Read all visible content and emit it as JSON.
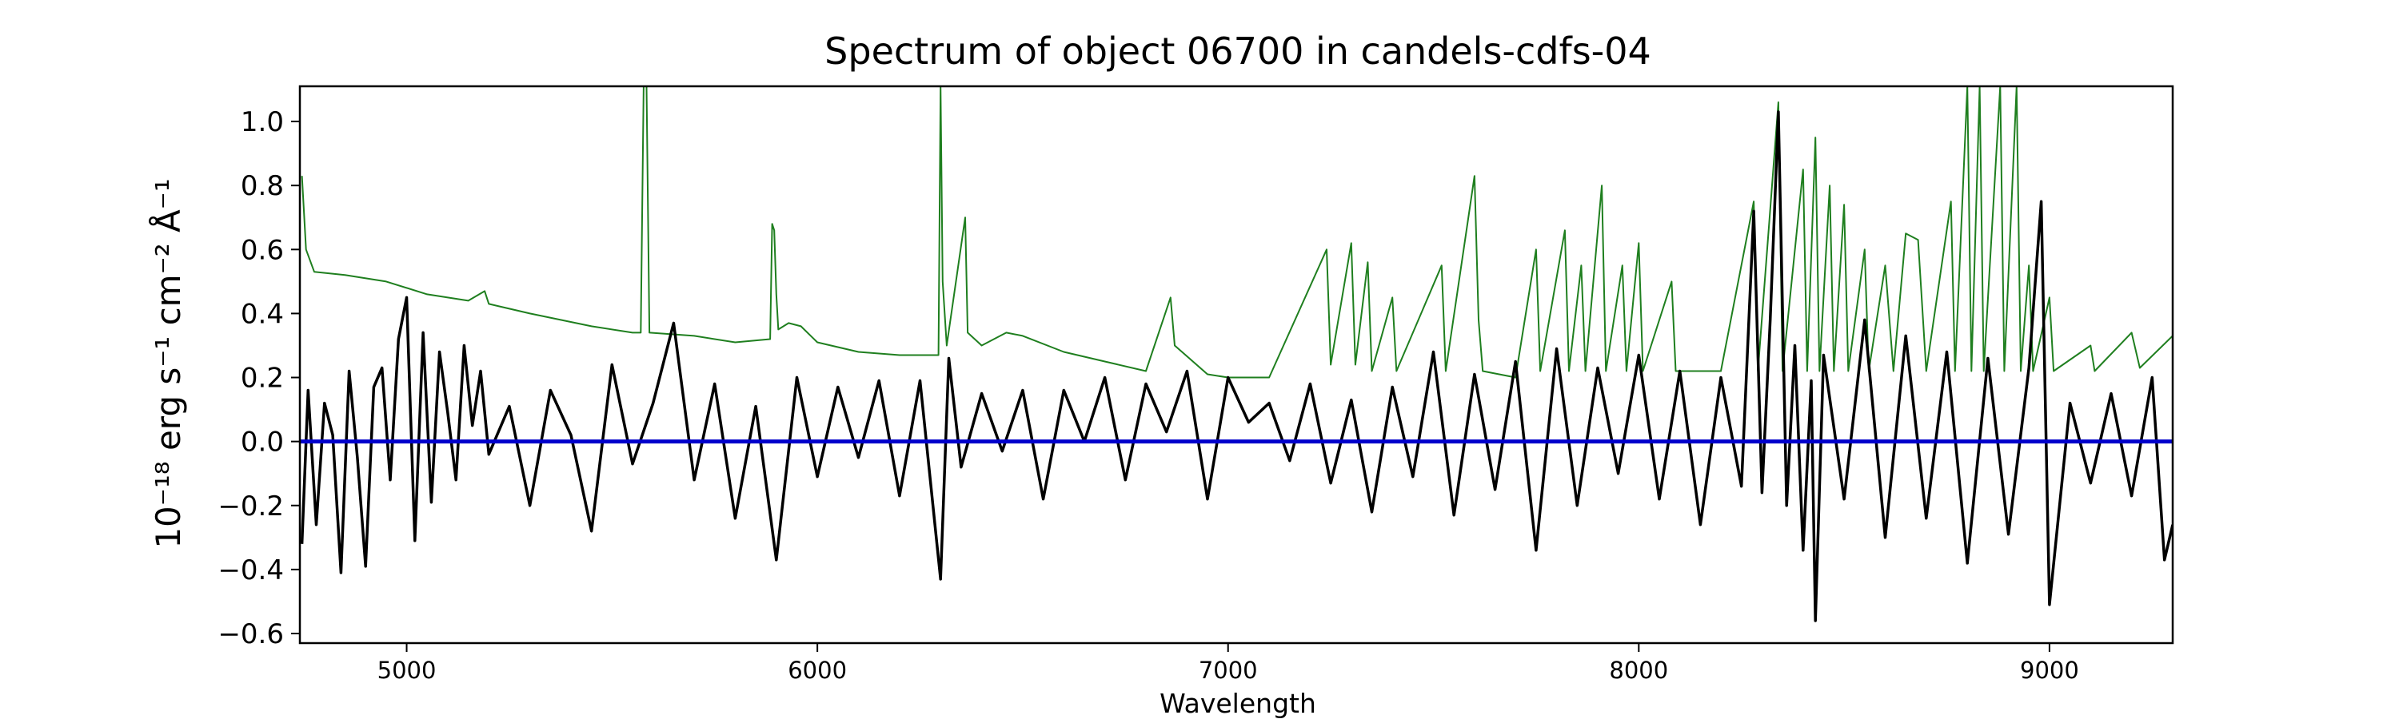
{
  "chart_data": {
    "type": "line",
    "title": "Spectrum of object 06700 in candels-cdfs-04",
    "xlabel": "Wavelength",
    "ylabel": "10⁻¹⁸ erg s⁻¹ cm⁻² Å⁻¹",
    "xlim": [
      4740,
      9300
    ],
    "ylim": [
      -0.63,
      1.11
    ],
    "xticks": [
      5000,
      6000,
      7000,
      8000,
      9000
    ],
    "xtick_labels": [
      "5000",
      "6000",
      "7000",
      "8000",
      "9000"
    ],
    "yticks": [
      -0.6,
      -0.4,
      -0.2,
      0.0,
      0.2,
      0.4,
      0.6,
      0.8,
      1.0
    ],
    "ytick_labels": [
      "−0.6",
      "−0.4",
      "−0.2",
      "0.0",
      "0.2",
      "0.4",
      "0.6",
      "0.8",
      "1.0"
    ],
    "grid": false,
    "series": [
      {
        "color": "#1f7f1f",
        "points": [
          [
            4745,
            0.83
          ],
          [
            4755,
            0.6
          ],
          [
            4775,
            0.53
          ],
          [
            4850,
            0.52
          ],
          [
            4950,
            0.5
          ],
          [
            5050,
            0.46
          ],
          [
            5150,
            0.44
          ],
          [
            5190,
            0.47
          ],
          [
            5200,
            0.43
          ],
          [
            5300,
            0.4
          ],
          [
            5450,
            0.36
          ],
          [
            5550,
            0.34
          ],
          [
            5570,
            0.34
          ],
          [
            5577,
            1.11
          ],
          [
            5584,
            1.11
          ],
          [
            5591,
            0.34
          ],
          [
            5700,
            0.33
          ],
          [
            5800,
            0.31
          ],
          [
            5885,
            0.32
          ],
          [
            5890,
            0.68
          ],
          [
            5895,
            0.66
          ],
          [
            5900,
            0.46
          ],
          [
            5905,
            0.35
          ],
          [
            5930,
            0.37
          ],
          [
            5960,
            0.36
          ],
          [
            6000,
            0.31
          ],
          [
            6100,
            0.28
          ],
          [
            6200,
            0.27
          ],
          [
            6295,
            0.27
          ],
          [
            6300,
            1.11
          ],
          [
            6305,
            0.5
          ],
          [
            6315,
            0.3
          ],
          [
            6360,
            0.7
          ],
          [
            6366,
            0.34
          ],
          [
            6400,
            0.3
          ],
          [
            6460,
            0.34
          ],
          [
            6500,
            0.33
          ],
          [
            6600,
            0.28
          ],
          [
            6700,
            0.25
          ],
          [
            6800,
            0.22
          ],
          [
            6860,
            0.45
          ],
          [
            6870,
            0.3
          ],
          [
            6950,
            0.21
          ],
          [
            7000,
            0.2
          ],
          [
            7100,
            0.2
          ],
          [
            7240,
            0.6
          ],
          [
            7250,
            0.24
          ],
          [
            7300,
            0.62
          ],
          [
            7310,
            0.24
          ],
          [
            7340,
            0.56
          ],
          [
            7350,
            0.22
          ],
          [
            7400,
            0.45
          ],
          [
            7410,
            0.22
          ],
          [
            7520,
            0.55
          ],
          [
            7530,
            0.22
          ],
          [
            7600,
            0.83
          ],
          [
            7610,
            0.38
          ],
          [
            7620,
            0.22
          ],
          [
            7700,
            0.2
          ],
          [
            7750,
            0.6
          ],
          [
            7760,
            0.22
          ],
          [
            7820,
            0.66
          ],
          [
            7830,
            0.22
          ],
          [
            7860,
            0.55
          ],
          [
            7870,
            0.22
          ],
          [
            7910,
            0.8
          ],
          [
            7920,
            0.22
          ],
          [
            7960,
            0.55
          ],
          [
            7970,
            0.22
          ],
          [
            8000,
            0.62
          ],
          [
            8010,
            0.22
          ],
          [
            8080,
            0.5
          ],
          [
            8090,
            0.22
          ],
          [
            8200,
            0.22
          ],
          [
            8280,
            0.75
          ],
          [
            8290,
            0.22
          ],
          [
            8340,
            1.06
          ],
          [
            8350,
            0.22
          ],
          [
            8400,
            0.85
          ],
          [
            8410,
            0.22
          ],
          [
            8430,
            0.95
          ],
          [
            8440,
            0.22
          ],
          [
            8465,
            0.8
          ],
          [
            8475,
            0.22
          ],
          [
            8500,
            0.74
          ],
          [
            8510,
            0.22
          ],
          [
            8550,
            0.6
          ],
          [
            8560,
            0.22
          ],
          [
            8600,
            0.55
          ],
          [
            8620,
            0.22
          ],
          [
            8650,
            0.65
          ],
          [
            8680,
            0.63
          ],
          [
            8700,
            0.22
          ],
          [
            8760,
            0.75
          ],
          [
            8770,
            0.22
          ],
          [
            8800,
            1.11
          ],
          [
            8810,
            0.22
          ],
          [
            8830,
            1.11
          ],
          [
            8840,
            0.22
          ],
          [
            8880,
            1.11
          ],
          [
            8890,
            0.22
          ],
          [
            8920,
            1.11
          ],
          [
            8930,
            0.22
          ],
          [
            8950,
            0.55
          ],
          [
            8960,
            0.22
          ],
          [
            9000,
            0.45
          ],
          [
            9010,
            0.22
          ],
          [
            9100,
            0.3
          ],
          [
            9110,
            0.22
          ],
          [
            9200,
            0.34
          ],
          [
            9220,
            0.23
          ],
          [
            9300,
            0.33
          ]
        ]
      },
      {
        "color": "#000000",
        "points": [
          [
            4745,
            -0.32
          ],
          [
            4760,
            0.16
          ],
          [
            4780,
            -0.26
          ],
          [
            4800,
            0.12
          ],
          [
            4820,
            0.02
          ],
          [
            4840,
            -0.41
          ],
          [
            4860,
            0.22
          ],
          [
            4880,
            -0.05
          ],
          [
            4900,
            -0.39
          ],
          [
            4920,
            0.17
          ],
          [
            4940,
            0.23
          ],
          [
            4960,
            -0.12
          ],
          [
            4980,
            0.32
          ],
          [
            5000,
            0.45
          ],
          [
            5020,
            -0.31
          ],
          [
            5040,
            0.34
          ],
          [
            5060,
            -0.19
          ],
          [
            5080,
            0.28
          ],
          [
            5100,
            0.09
          ],
          [
            5120,
            -0.12
          ],
          [
            5140,
            0.3
          ],
          [
            5160,
            0.05
          ],
          [
            5180,
            0.22
          ],
          [
            5200,
            -0.04
          ],
          [
            5250,
            0.11
          ],
          [
            5300,
            -0.2
          ],
          [
            5350,
            0.16
          ],
          [
            5400,
            0.02
          ],
          [
            5450,
            -0.28
          ],
          [
            5500,
            0.24
          ],
          [
            5550,
            -0.07
          ],
          [
            5600,
            0.12
          ],
          [
            5650,
            0.37
          ],
          [
            5700,
            -0.12
          ],
          [
            5750,
            0.18
          ],
          [
            5800,
            -0.24
          ],
          [
            5850,
            0.11
          ],
          [
            5900,
            -0.37
          ],
          [
            5950,
            0.2
          ],
          [
            6000,
            -0.11
          ],
          [
            6050,
            0.17
          ],
          [
            6100,
            -0.05
          ],
          [
            6150,
            0.19
          ],
          [
            6200,
            -0.17
          ],
          [
            6250,
            0.19
          ],
          [
            6300,
            -0.43
          ],
          [
            6320,
            0.26
          ],
          [
            6350,
            -0.08
          ],
          [
            6400,
            0.15
          ],
          [
            6450,
            -0.03
          ],
          [
            6500,
            0.16
          ],
          [
            6550,
            -0.18
          ],
          [
            6600,
            0.16
          ],
          [
            6650,
            0.0
          ],
          [
            6700,
            0.2
          ],
          [
            6750,
            -0.12
          ],
          [
            6800,
            0.18
          ],
          [
            6850,
            0.03
          ],
          [
            6900,
            0.22
          ],
          [
            6950,
            -0.18
          ],
          [
            7000,
            0.2
          ],
          [
            7050,
            0.06
          ],
          [
            7100,
            0.12
          ],
          [
            7150,
            -0.06
          ],
          [
            7200,
            0.18
          ],
          [
            7250,
            -0.13
          ],
          [
            7300,
            0.13
          ],
          [
            7350,
            -0.22
          ],
          [
            7400,
            0.17
          ],
          [
            7450,
            -0.11
          ],
          [
            7500,
            0.28
          ],
          [
            7550,
            -0.23
          ],
          [
            7600,
            0.21
          ],
          [
            7650,
            -0.15
          ],
          [
            7700,
            0.25
          ],
          [
            7750,
            -0.34
          ],
          [
            7800,
            0.29
          ],
          [
            7850,
            -0.2
          ],
          [
            7900,
            0.23
          ],
          [
            7950,
            -0.1
          ],
          [
            8000,
            0.27
          ],
          [
            8050,
            -0.18
          ],
          [
            8100,
            0.22
          ],
          [
            8150,
            -0.26
          ],
          [
            8200,
            0.2
          ],
          [
            8250,
            -0.14
          ],
          [
            8280,
            0.72
          ],
          [
            8300,
            -0.16
          ],
          [
            8320,
            0.38
          ],
          [
            8340,
            1.03
          ],
          [
            8360,
            -0.2
          ],
          [
            8380,
            0.3
          ],
          [
            8400,
            -0.34
          ],
          [
            8420,
            0.19
          ],
          [
            8430,
            -0.56
          ],
          [
            8450,
            0.27
          ],
          [
            8500,
            -0.18
          ],
          [
            8550,
            0.38
          ],
          [
            8600,
            -0.3
          ],
          [
            8650,
            0.33
          ],
          [
            8700,
            -0.24
          ],
          [
            8750,
            0.28
          ],
          [
            8800,
            -0.38
          ],
          [
            8850,
            0.26
          ],
          [
            8900,
            -0.29
          ],
          [
            8950,
            0.23
          ],
          [
            8980,
            0.75
          ],
          [
            9000,
            -0.51
          ],
          [
            9050,
            0.12
          ],
          [
            9100,
            -0.13
          ],
          [
            9150,
            0.15
          ],
          [
            9200,
            -0.17
          ],
          [
            9250,
            0.2
          ],
          [
            9280,
            -0.37
          ],
          [
            9300,
            -0.26
          ]
        ]
      },
      {
        "color": "#0000cc",
        "points": [
          [
            4740,
            0.0
          ],
          [
            9300,
            0.0
          ]
        ]
      }
    ]
  }
}
